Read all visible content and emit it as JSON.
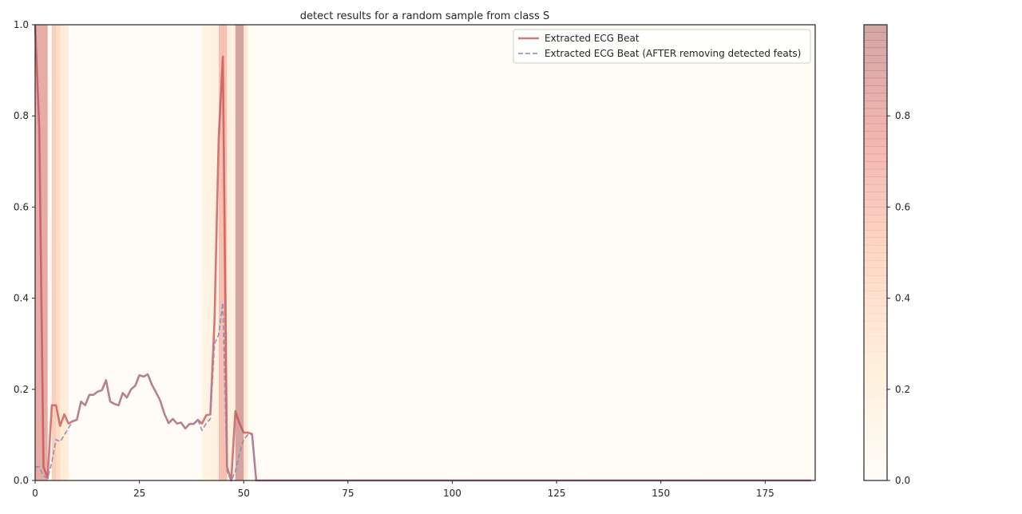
{
  "chart_data": {
    "type": "line",
    "title": "detect results for a random sample from class S",
    "xlabel": "",
    "ylabel": "",
    "xlim": [
      0,
      187
    ],
    "ylim": [
      0,
      1
    ],
    "xticks": [
      0,
      25,
      50,
      75,
      100,
      125,
      150,
      175
    ],
    "yticks": [
      0.0,
      0.2,
      0.4,
      0.6,
      0.8,
      1.0
    ],
    "grid": false,
    "legend_position": "top-right",
    "series": [
      {
        "name": "Extracted ECG Beat",
        "color": "#c44e52",
        "style": "solid",
        "values": [
          1.0,
          0.77,
          0.03,
          0.005,
          0.165,
          0.165,
          0.12,
          0.145,
          0.125,
          0.13,
          0.133,
          0.173,
          0.165,
          0.188,
          0.188,
          0.195,
          0.198,
          0.22,
          0.173,
          0.168,
          0.165,
          0.192,
          0.182,
          0.2,
          0.208,
          0.231,
          0.228,
          0.233,
          0.21,
          0.193,
          0.175,
          0.146,
          0.126,
          0.135,
          0.125,
          0.127,
          0.114,
          0.124,
          0.124,
          0.133,
          0.125,
          0.143,
          0.145,
          0.35,
          0.75,
          0.93,
          0.03,
          0.0,
          0.152,
          0.125,
          0.105,
          0.105,
          0.102,
          0.0
        ]
      },
      {
        "name": "Extracted ECG Beat (AFTER removing detected feats)",
        "color": "#8c8cb4",
        "style": "dashed",
        "values": [
          0.03,
          0.03,
          0.01,
          0.005,
          0.04,
          0.09,
          0.085,
          0.1,
          0.115,
          0.13,
          0.133,
          0.173,
          0.165,
          0.188,
          0.188,
          0.195,
          0.198,
          0.22,
          0.173,
          0.168,
          0.165,
          0.192,
          0.182,
          0.2,
          0.208,
          0.231,
          0.228,
          0.233,
          0.21,
          0.193,
          0.175,
          0.146,
          0.126,
          0.135,
          0.125,
          0.127,
          0.114,
          0.124,
          0.124,
          0.133,
          0.11,
          0.125,
          0.135,
          0.3,
          0.32,
          0.39,
          0.02,
          0.0,
          0.02,
          0.06,
          0.09,
          0.1,
          0.1,
          0.0
        ]
      }
    ],
    "tail_value": 0.0,
    "tail_end": 186,
    "importance_bands": [
      {
        "from": 0,
        "to": 3,
        "value": 0.85
      },
      {
        "from": 4,
        "to": 5,
        "value": 0.55
      },
      {
        "from": 5,
        "to": 6,
        "value": 0.42
      },
      {
        "from": 6,
        "to": 8,
        "value": 0.25
      },
      {
        "from": 40,
        "to": 42,
        "value": 0.12
      },
      {
        "from": 42,
        "to": 44,
        "value": 0.15
      },
      {
        "from": 44,
        "to": 46,
        "value": 0.65
      },
      {
        "from": 46,
        "to": 47,
        "value": 0.2
      },
      {
        "from": 47,
        "to": 48,
        "value": 0.15
      },
      {
        "from": 48,
        "to": 50,
        "value": 0.98
      },
      {
        "from": 50,
        "to": 51,
        "value": 0.3
      }
    ],
    "background_value": 0.03,
    "colorbar": {
      "range": [
        0,
        1
      ],
      "ticks": [
        0.0,
        0.2,
        0.4,
        0.6,
        0.8
      ],
      "colormap": "OrRd",
      "alpha": 0.35
    }
  }
}
